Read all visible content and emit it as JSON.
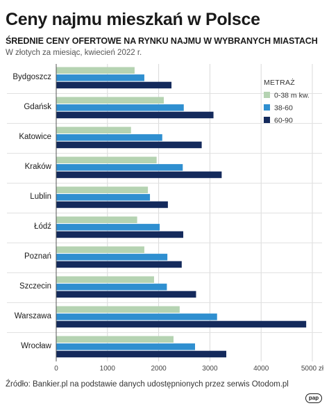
{
  "title": "Ceny najmu mieszkań w Polsce",
  "subtitle": "ŚREDNIE CENY OFERTOWE NA RYNKU NAJMU W WYBRANYCH MIASTACH",
  "unit_note": "W złotych za miesiąc, kwiecień 2022 r.",
  "source": "Źródło: Bankier.pl na podstawie danych udostępnionych przez serwis Otodom.pl",
  "logo_text": "pap",
  "chart_data": {
    "type": "bar",
    "orientation": "horizontal",
    "title": "Ceny najmu mieszkań w Polsce",
    "legend_title": "METRAŻ",
    "legend_position": "top-right",
    "categories": [
      "Bydgoszcz",
      "Gdańsk",
      "Katowice",
      "Kraków",
      "Lublin",
      "Łódź",
      "Poznań",
      "Szczecin",
      "Warszawa",
      "Wrocław"
    ],
    "series": [
      {
        "name": "0-38 m kw.",
        "color": "#b5d3b2",
        "values": [
          1530,
          2100,
          1460,
          1960,
          1790,
          1580,
          1720,
          1910,
          2410,
          2290
        ]
      },
      {
        "name": "38-60",
        "color": "#2f8fd0",
        "values": [
          1720,
          2490,
          2070,
          2470,
          1830,
          2020,
          2170,
          2160,
          3140,
          2710
        ]
      },
      {
        "name": "60-90",
        "color": "#142a5c",
        "values": [
          2250,
          3070,
          2840,
          3230,
          2180,
          2480,
          2450,
          2730,
          4880,
          3320
        ]
      }
    ],
    "xlim": [
      0,
      5000
    ],
    "x_ticks": [
      0,
      1000,
      2000,
      3000,
      4000,
      5000
    ],
    "x_tick_labels": [
      "0",
      "1000",
      "2000",
      "3000",
      "4000",
      "5000 zł"
    ],
    "grid": true
  }
}
